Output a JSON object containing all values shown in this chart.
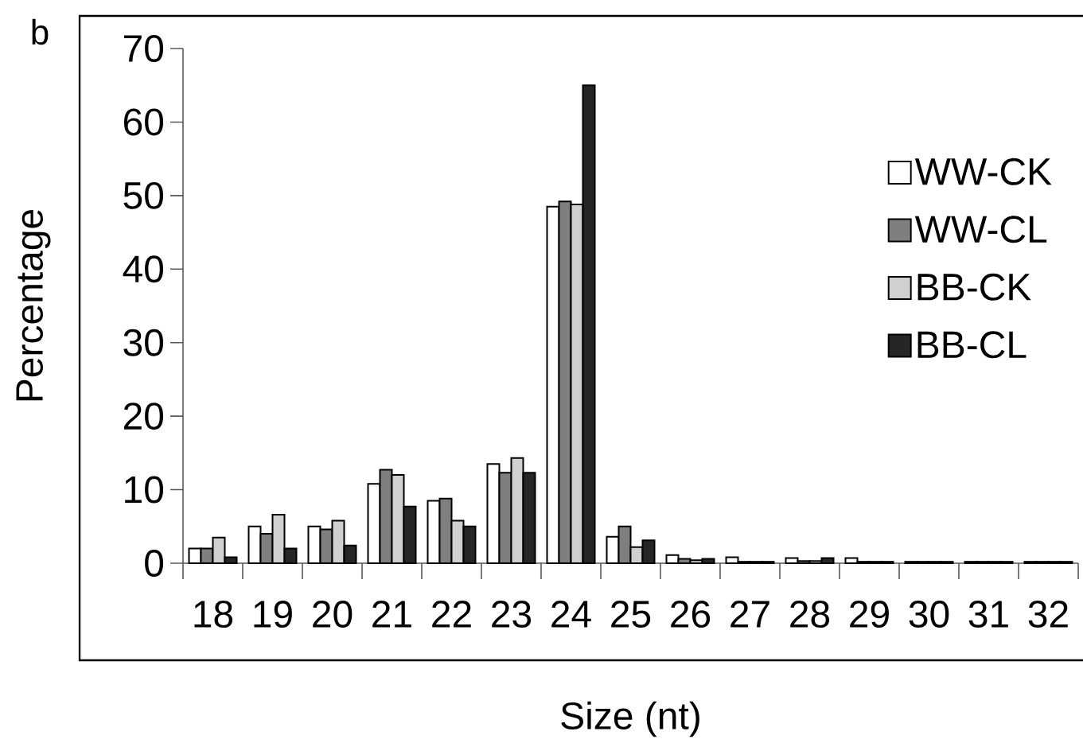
{
  "chart_data": {
    "type": "bar",
    "xlabel": "Size (nt)",
    "ylabel": "Percentage",
    "annotations": [
      "b"
    ],
    "categories": [
      "18",
      "19",
      "20",
      "21",
      "22",
      "23",
      "24",
      "25",
      "26",
      "27",
      "28",
      "29",
      "30",
      "31",
      "32"
    ],
    "series": [
      {
        "name": "WW-CK",
        "color": "#ffffff",
        "values": [
          2,
          5,
          5,
          10.8,
          8.5,
          13.5,
          48.5,
          3.6,
          1.1,
          0.8,
          0.7,
          0.7,
          0.2,
          0.2,
          0.2
        ]
      },
      {
        "name": "WW-CL",
        "color": "#7f7f7f",
        "values": [
          2,
          4,
          4.6,
          12.7,
          8.8,
          12.3,
          49.2,
          5,
          0.6,
          0.2,
          0.3,
          0.2,
          0.2,
          0.2,
          0.2
        ]
      },
      {
        "name": "BB-CK",
        "color": "#d0d0d0",
        "values": [
          3.5,
          6.6,
          5.8,
          12,
          5.8,
          14.3,
          48.8,
          2.2,
          0.4,
          0.2,
          0.3,
          0.2,
          0.2,
          0.2,
          0.2
        ]
      },
      {
        "name": "BB-CL",
        "color": "#262626",
        "values": [
          0.8,
          2,
          2.4,
          7.7,
          5,
          12.3,
          65,
          3.1,
          0.6,
          0.2,
          0.7,
          0.2,
          0.2,
          0.2,
          0.2
        ]
      }
    ],
    "ylim": [
      0,
      70
    ],
    "yticks": [
      0,
      10,
      20,
      30,
      40,
      50,
      60,
      70
    ],
    "grid": false,
    "legend": "right"
  }
}
